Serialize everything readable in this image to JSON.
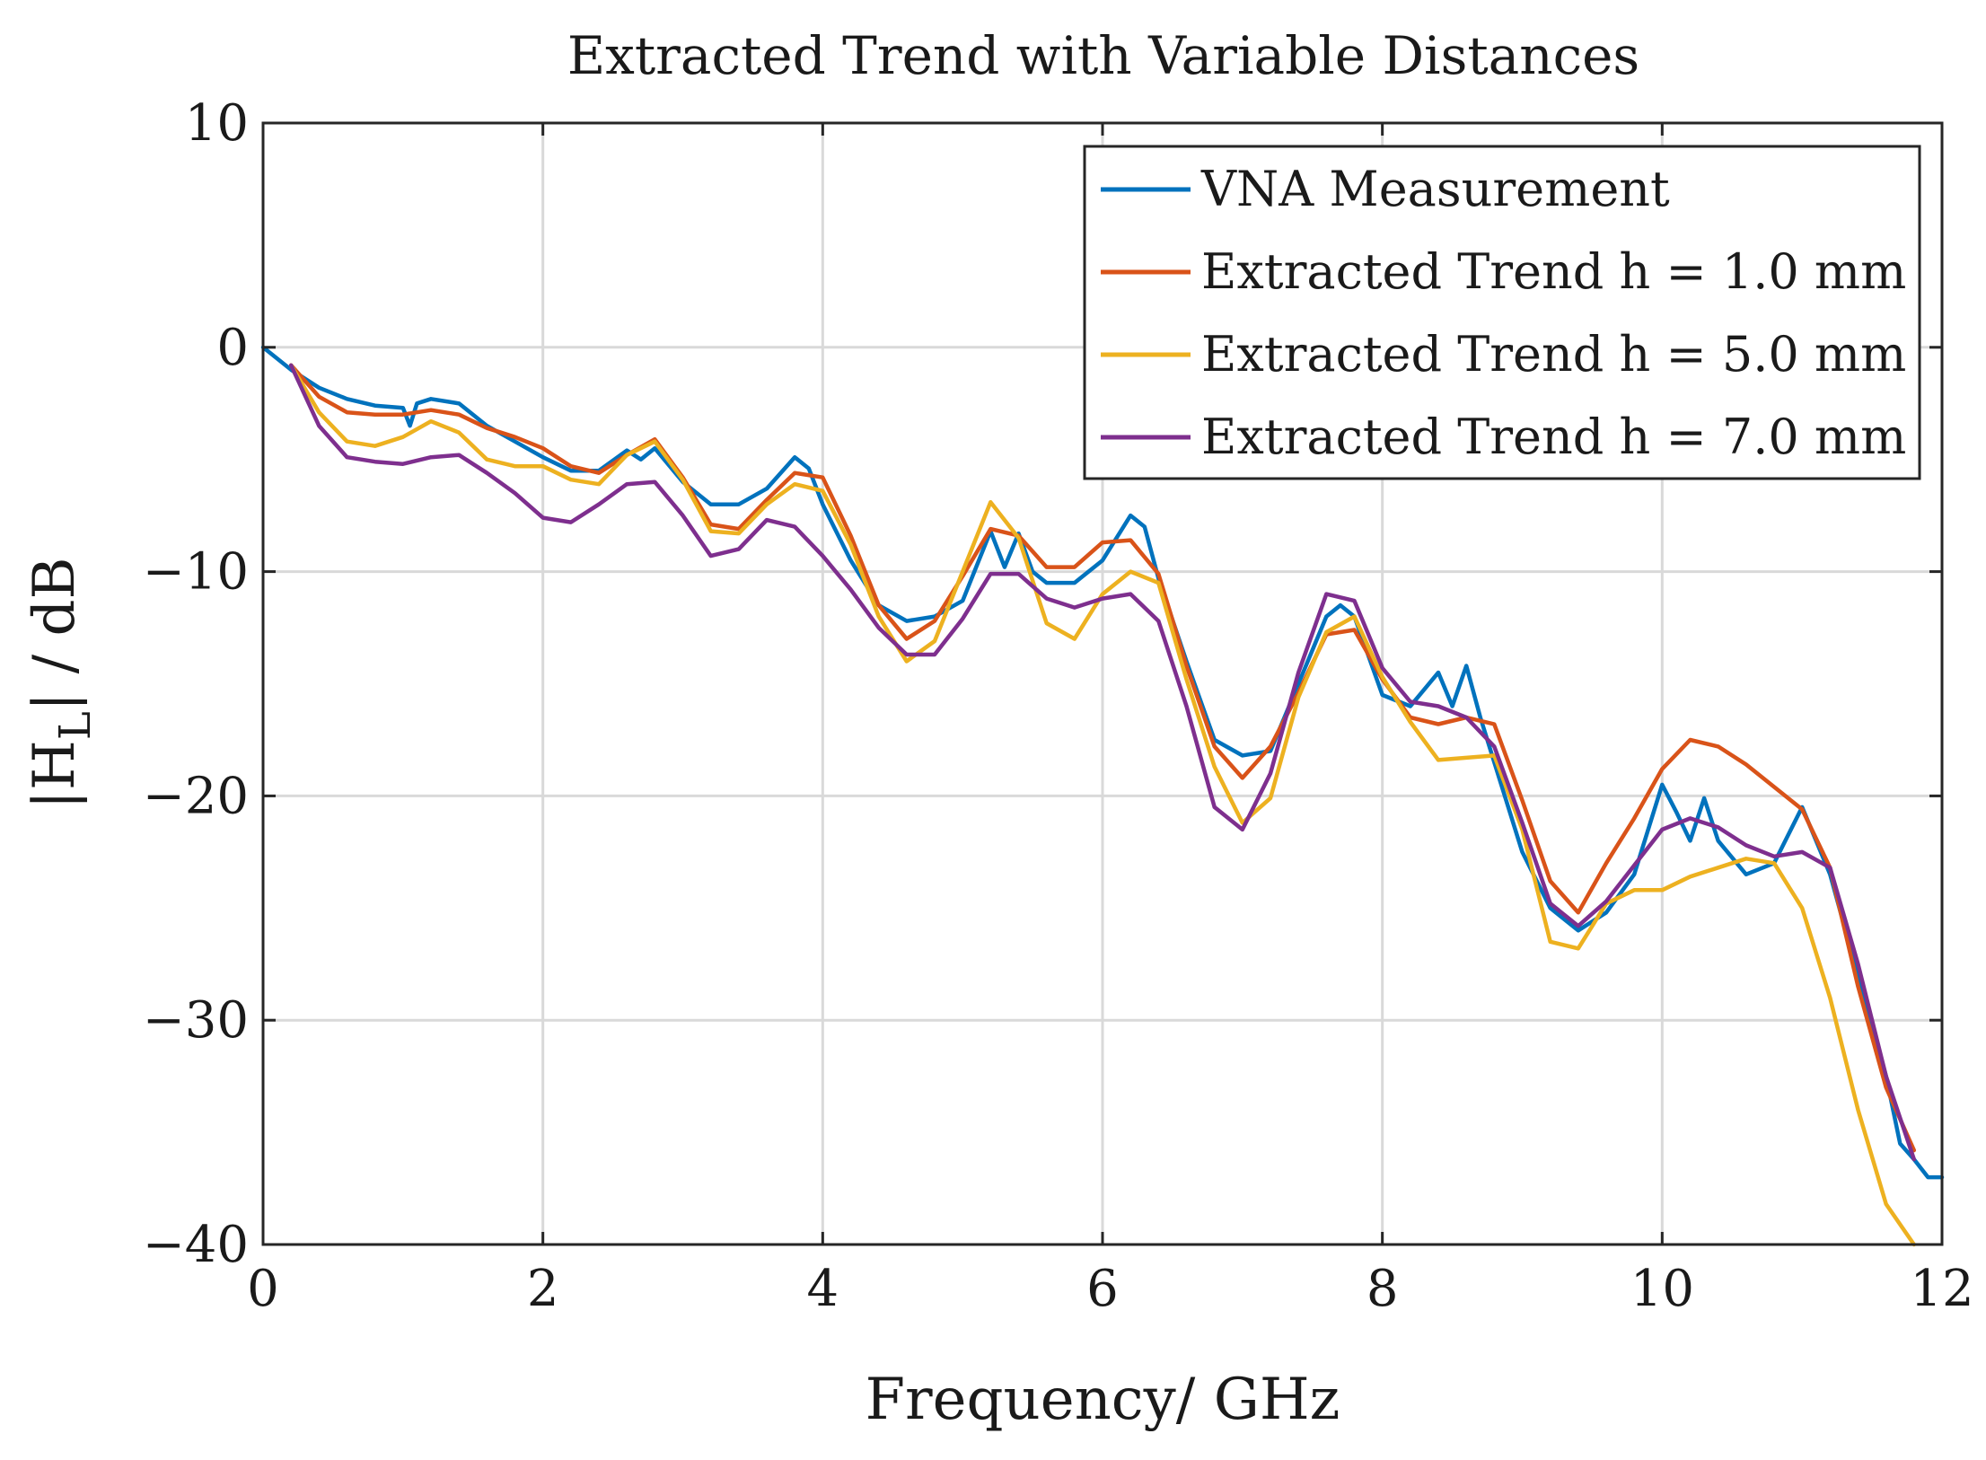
{
  "chart_data": {
    "type": "line",
    "title": "Extracted Trend with Variable Distances",
    "xlabel": "Frequency/ GHz",
    "ylabel_main": "|H",
    "ylabel_sub": "L",
    "ylabel_tail": "| / dB",
    "xlim": [
      0,
      12
    ],
    "ylim": [
      -40,
      10
    ],
    "xticks": [
      0,
      2,
      4,
      6,
      8,
      10,
      12
    ],
    "yticks": [
      10,
      0,
      -10,
      -20,
      -30,
      -40
    ],
    "xtick_labels": [
      "0",
      "2",
      "4",
      "6",
      "8",
      "10",
      "12"
    ],
    "ytick_labels": [
      "10",
      "0",
      "−10",
      "−20",
      "−30",
      "−40"
    ],
    "grid": true,
    "legend_position": "top-right",
    "series": [
      {
        "name": "VNA Measurement",
        "color": "#0072BD",
        "x": [
          0,
          0.2,
          0.4,
          0.6,
          0.8,
          1.0,
          1.05,
          1.1,
          1.2,
          1.4,
          1.6,
          1.8,
          2.0,
          2.2,
          2.4,
          2.6,
          2.7,
          2.8,
          3.0,
          3.2,
          3.4,
          3.6,
          3.8,
          3.9,
          4.0,
          4.2,
          4.4,
          4.6,
          4.8,
          5.0,
          5.2,
          5.3,
          5.4,
          5.5,
          5.6,
          5.8,
          6.0,
          6.2,
          6.3,
          6.4,
          6.6,
          6.8,
          7.0,
          7.2,
          7.4,
          7.6,
          7.7,
          7.8,
          8.0,
          8.2,
          8.4,
          8.5,
          8.6,
          8.7,
          8.8,
          9.0,
          9.2,
          9.4,
          9.6,
          9.8,
          10.0,
          10.1,
          10.2,
          10.3,
          10.4,
          10.6,
          10.8,
          11.0,
          11.2,
          11.4,
          11.6,
          11.7,
          11.8,
          11.9,
          12.0
        ],
        "y": [
          0,
          -1.0,
          -1.8,
          -2.3,
          -2.6,
          -2.7,
          -3.5,
          -2.5,
          -2.3,
          -2.5,
          -3.5,
          -4.2,
          -4.9,
          -5.5,
          -5.5,
          -4.6,
          -5.0,
          -4.5,
          -6.0,
          -7.0,
          -7.0,
          -6.3,
          -4.9,
          -5.4,
          -7.0,
          -9.5,
          -11.5,
          -12.2,
          -12.0,
          -11.3,
          -8.2,
          -9.8,
          -8.3,
          -10.0,
          -10.5,
          -10.5,
          -9.5,
          -7.5,
          -8.0,
          -10.3,
          -14.0,
          -17.5,
          -18.2,
          -18.0,
          -15.0,
          -12.0,
          -11.5,
          -12.0,
          -15.5,
          -16.0,
          -14.5,
          -16.0,
          -14.2,
          -16.5,
          -18.5,
          -22.5,
          -25.0,
          -26.0,
          -25.2,
          -23.5,
          -19.5,
          -20.7,
          -22.0,
          -20.1,
          -22.0,
          -23.5,
          -23.0,
          -20.5,
          -23.5,
          -28.0,
          -32.5,
          -35.5,
          -36.2,
          -37.0,
          -37.0
        ]
      },
      {
        "name": "Extracted Trend h = 1.0 mm",
        "color": "#D95319",
        "x": [
          0.2,
          0.4,
          0.6,
          0.8,
          1.0,
          1.2,
          1.4,
          1.6,
          1.8,
          2.0,
          2.2,
          2.4,
          2.6,
          2.8,
          3.0,
          3.2,
          3.4,
          3.6,
          3.8,
          4.0,
          4.2,
          4.4,
          4.6,
          4.8,
          5.0,
          5.2,
          5.4,
          5.6,
          5.8,
          6.0,
          6.2,
          6.4,
          6.6,
          6.8,
          7.0,
          7.2,
          7.4,
          7.6,
          7.8,
          8.0,
          8.2,
          8.4,
          8.6,
          8.8,
          9.0,
          9.2,
          9.4,
          9.6,
          9.8,
          10.0,
          10.2,
          10.4,
          10.6,
          10.8,
          11.0,
          11.2,
          11.4,
          11.6,
          11.8
        ],
        "y": [
          -0.8,
          -2.2,
          -2.9,
          -3.0,
          -3.0,
          -2.8,
          -3.0,
          -3.6,
          -4.0,
          -4.5,
          -5.3,
          -5.6,
          -4.8,
          -4.1,
          -5.8,
          -7.9,
          -8.1,
          -6.8,
          -5.6,
          -5.8,
          -8.4,
          -11.5,
          -13.0,
          -12.2,
          -10.2,
          -8.1,
          -8.4,
          -9.8,
          -9.8,
          -8.7,
          -8.6,
          -10.1,
          -14.2,
          -17.8,
          -19.2,
          -17.8,
          -15.4,
          -12.8,
          -12.6,
          -14.8,
          -16.5,
          -16.8,
          -16.5,
          -16.8,
          -20.2,
          -23.8,
          -25.2,
          -23.0,
          -21.0,
          -18.8,
          -17.5,
          -17.8,
          -18.6,
          -19.6,
          -20.6,
          -23.2,
          -28.5,
          -33.0,
          -35.8
        ]
      },
      {
        "name": "Extracted Trend h = 5.0 mm",
        "color": "#EDB120",
        "x": [
          0.2,
          0.4,
          0.6,
          0.8,
          1.0,
          1.2,
          1.4,
          1.6,
          1.8,
          2.0,
          2.2,
          2.4,
          2.6,
          2.8,
          3.0,
          3.2,
          3.4,
          3.6,
          3.8,
          4.0,
          4.2,
          4.4,
          4.6,
          4.8,
          5.0,
          5.2,
          5.4,
          5.6,
          5.8,
          6.0,
          6.2,
          6.4,
          6.6,
          6.8,
          7.0,
          7.2,
          7.4,
          7.6,
          7.8,
          8.0,
          8.2,
          8.4,
          8.6,
          8.8,
          9.0,
          9.2,
          9.4,
          9.6,
          9.8,
          10.0,
          10.2,
          10.4,
          10.6,
          10.8,
          11.0,
          11.2,
          11.4,
          11.6,
          11.8
        ],
        "y": [
          -0.8,
          -2.9,
          -4.2,
          -4.4,
          -4.0,
          -3.3,
          -3.8,
          -5.0,
          -5.3,
          -5.3,
          -5.9,
          -6.1,
          -4.8,
          -4.2,
          -5.9,
          -8.2,
          -8.3,
          -7.0,
          -6.1,
          -6.4,
          -8.8,
          -12.0,
          -14.0,
          -13.1,
          -10.0,
          -6.9,
          -8.5,
          -12.3,
          -13.0,
          -11.0,
          -10.0,
          -10.5,
          -14.8,
          -18.7,
          -21.2,
          -20.1,
          -15.6,
          -12.7,
          -12.0,
          -14.7,
          -16.7,
          -18.4,
          -18.3,
          -18.2,
          -21.5,
          -26.5,
          -26.8,
          -24.8,
          -24.2,
          -24.2,
          -23.6,
          -23.2,
          -22.8,
          -23.0,
          -25.0,
          -29.0,
          -34.0,
          -38.2,
          -40.0
        ]
      },
      {
        "name": "Extracted Trend h = 7.0 mm",
        "color": "#7E2F8E",
        "x": [
          0.2,
          0.4,
          0.6,
          0.8,
          1.0,
          1.2,
          1.4,
          1.6,
          1.8,
          2.0,
          2.2,
          2.4,
          2.6,
          2.8,
          3.0,
          3.2,
          3.4,
          3.6,
          3.8,
          4.0,
          4.2,
          4.4,
          4.6,
          4.8,
          5.0,
          5.2,
          5.4,
          5.6,
          5.8,
          6.0,
          6.2,
          6.4,
          6.6,
          6.8,
          7.0,
          7.2,
          7.4,
          7.6,
          7.8,
          8.0,
          8.2,
          8.4,
          8.6,
          8.8,
          9.0,
          9.2,
          9.4,
          9.6,
          9.8,
          10.0,
          10.2,
          10.4,
          10.6,
          10.8,
          11.0,
          11.2,
          11.4,
          11.6,
          11.8
        ],
        "y": [
          -0.8,
          -3.5,
          -4.9,
          -5.1,
          -5.2,
          -4.9,
          -4.8,
          -5.6,
          -6.5,
          -7.6,
          -7.8,
          -7.0,
          -6.1,
          -6.0,
          -7.5,
          -9.3,
          -9.0,
          -7.7,
          -8.0,
          -9.3,
          -10.8,
          -12.5,
          -13.7,
          -13.7,
          -12.1,
          -10.1,
          -10.1,
          -11.2,
          -11.6,
          -11.2,
          -11.0,
          -12.2,
          -16.0,
          -20.5,
          -21.5,
          -19.0,
          -14.5,
          -11.0,
          -11.3,
          -14.3,
          -15.8,
          -16.0,
          -16.5,
          -17.8,
          -21.2,
          -24.8,
          -25.8,
          -24.7,
          -23.1,
          -21.5,
          -21.0,
          -21.4,
          -22.2,
          -22.7,
          -22.5,
          -23.2,
          -27.5,
          -32.5,
          -36.2
        ]
      }
    ]
  }
}
